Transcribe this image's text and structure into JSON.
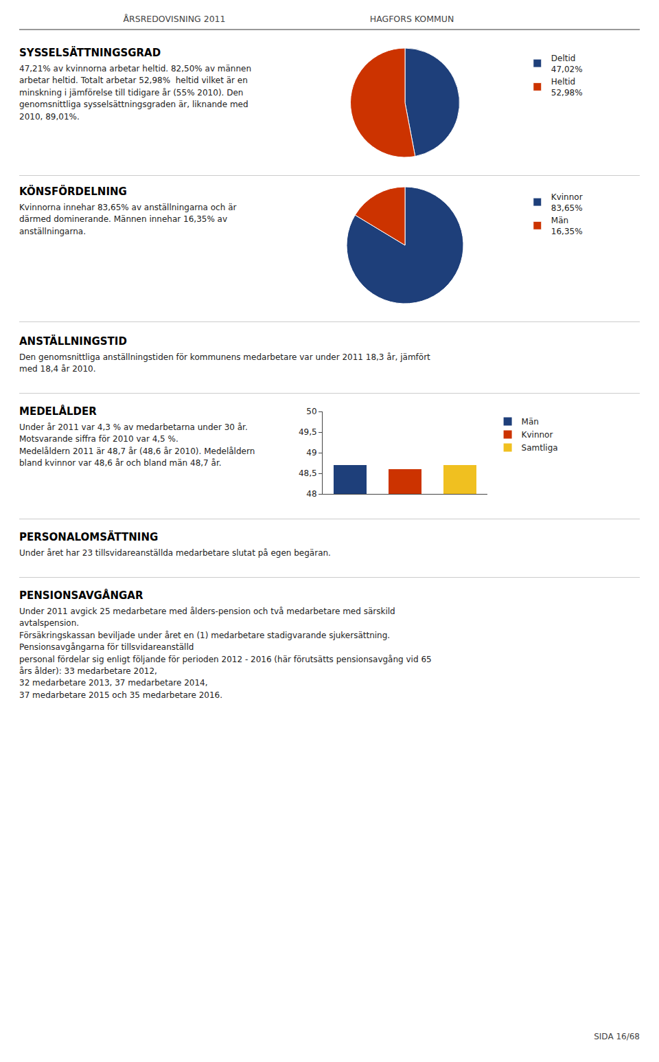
{
  "annotations": [
    "ÅRSREDOVISNING 2011",
    "HAGFORS KOMMUN",
    "SIDA 16/68"
  ],
  "chart_data": [
    {
      "type": "pie",
      "title": "SYSSELSÄTTNINGSGRAD",
      "subtitle": "47,21% av kvinnorna arbetar heltid. 82,50% av männen\narbetar heltid. Totalt arbetar 52,98%  heltid vilket är en\nminskning i jämförelse till tidigare år (55% 2010). Den\ngenomsnittliga sysselsättningsgraden är, liknande med\n2010, 89,01%.",
      "categories": [
        "Deltid",
        "Heltid"
      ],
      "values": [
        47.02,
        52.98
      ],
      "value_labels": [
        "47,02%",
        "52,98%"
      ],
      "colors": [
        "#1e3f7a",
        "#cc3300"
      ],
      "legend": "right",
      "data_labels": false
    },
    {
      "type": "pie",
      "title": "KÖNSFÖRDELNING",
      "subtitle": "Kvinnorna innehar 83,65% av anställningarna och är\ndärmed dominerande. Männen innehar 16,35% av\nanställningarna.",
      "categories": [
        "Kvinnor",
        "Män"
      ],
      "values": [
        83.65,
        16.35
      ],
      "value_labels": [
        "83,65%",
        "16,35%"
      ],
      "colors": [
        "#1e3f7a",
        "#cc3300"
      ],
      "legend": "right",
      "data_labels": false
    },
    {
      "type": "text",
      "title": "ANSTÄLLNINGSTID",
      "subtitle": "Den genomsnittliga anställningstiden för kommunens medarbetare var under 2011 18,3 år, jämfört\nmed 18,4 år 2010."
    },
    {
      "type": "bar",
      "title": "MEDELÅLDER",
      "subtitle": "Under år 2011 var 4,3 % av medarbetarna under 30 år.\nMotsvarande siffra för 2010 var 4,5 %.\nMedelåldern 2011 är 48,7 år (48,6 år 2010). Medelåldern\nbland kvinnor var 48,6 år och bland män 48,7 år.",
      "categories": [
        "Män",
        "Kvinnor",
        "Samtliga"
      ],
      "values": [
        48.7,
        48.6,
        48.7
      ],
      "colors": [
        "#1e3f7a",
        "#cc3300",
        "#f0c020"
      ],
      "ylim": [
        48.0,
        50.0
      ],
      "yticks": [
        48,
        {
          "value": 48.5,
          "label": "48,5"
        },
        49,
        {
          "value": 49.5,
          "label": "49,5"
        },
        50
      ],
      "tick_labels": "y",
      "legend": "right",
      "grid": false,
      "data_labels": false
    },
    {
      "type": "text",
      "title": "PERSONALOMSÄTTNING",
      "subtitle": "Under året har 23 tillsvidareanställda medarbetare slutat på egen begäran."
    },
    {
      "type": "text",
      "title": "PENSIONSAVGÅNGAR",
      "subtitle": "Under 2011 avgick 25 medarbetare med ålders-pension och två medarbetare med särskild\navtalspension.\nFörsäkringskassan beviljade under året en (1) medarbetare stadigvarande sjukersättning.\nPensionsavgångarna för tillsvidareanställd\npersonal fördelar sig enligt följande för perioden 2012 - 2016 (här förutsätts pensionsavgång vid 65\nårs ålder): 33 medarbetare 2012,\n32 medarbetare 2013, 37 medarbetare 2014,\n37 medarbetare 2015 och 35 medarbetare 2016."
    }
  ]
}
